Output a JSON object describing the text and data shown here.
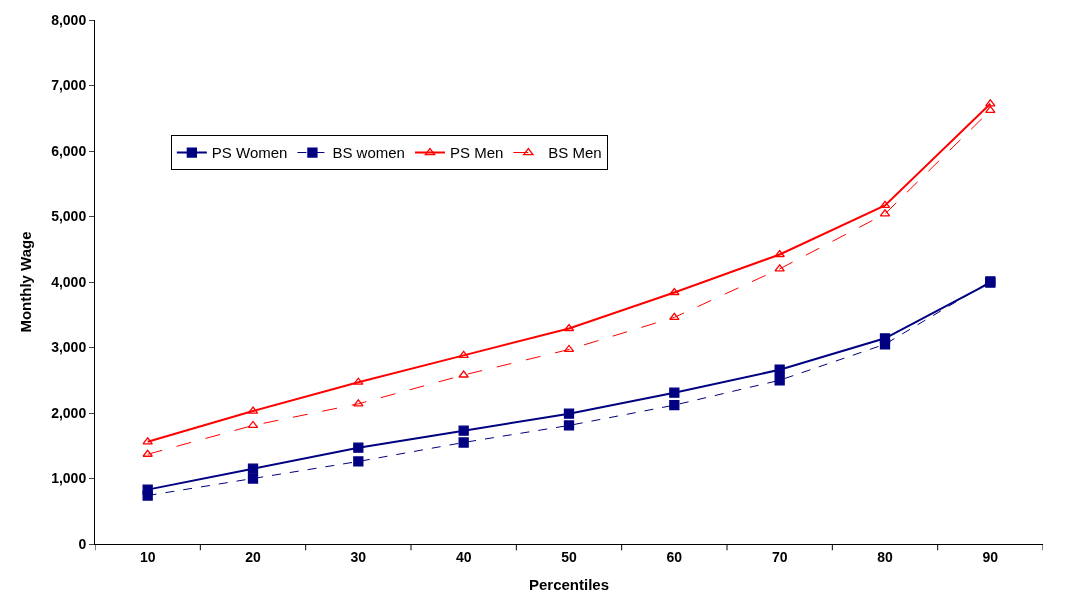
{
  "chart_data": {
    "type": "line",
    "xlabel": "Percentiles",
    "ylabel": "Monthly Wage",
    "categories": [
      "10",
      "20",
      "30",
      "40",
      "50",
      "60",
      "70",
      "80",
      "90"
    ],
    "ylim": [
      0,
      8000
    ],
    "yticks": [
      {
        "value": 0,
        "label": "0"
      },
      {
        "value": 1000,
        "label": "1,000"
      },
      {
        "value": 2000,
        "label": "2,000"
      },
      {
        "value": 3000,
        "label": "3,000"
      },
      {
        "value": 4000,
        "label": "4,000"
      },
      {
        "value": 5000,
        "label": "5,000"
      },
      {
        "value": 6000,
        "label": "6,000"
      },
      {
        "value": 7000,
        "label": "7,000"
      },
      {
        "value": 8000,
        "label": "8,000"
      }
    ],
    "legend": "top left",
    "series": [
      {
        "name": "PS Women",
        "color": "#000080",
        "marker": "square",
        "line_style": "solid",
        "values": [
          830,
          1150,
          1470,
          1730,
          1990,
          2310,
          2660,
          3140,
          3990
        ]
      },
      {
        "name": "BS women",
        "color": "#000080",
        "marker": "square",
        "line_style": "dashed",
        "values": [
          740,
          1000,
          1260,
          1550,
          1810,
          2120,
          2500,
          3050,
          4010
        ]
      },
      {
        "name": "PS Men",
        "color": "#ff0000",
        "marker": "triangle",
        "line_style": "solid",
        "values": [
          1560,
          2030,
          2470,
          2880,
          3290,
          3840,
          4420,
          5170,
          6720
        ]
      },
      {
        "name": "BS Men",
        "color": "#ff0000",
        "marker": "triangle",
        "line_style": "dashed",
        "values": [
          1370,
          1810,
          2140,
          2580,
          2970,
          3460,
          4200,
          5040,
          6620
        ]
      }
    ]
  }
}
